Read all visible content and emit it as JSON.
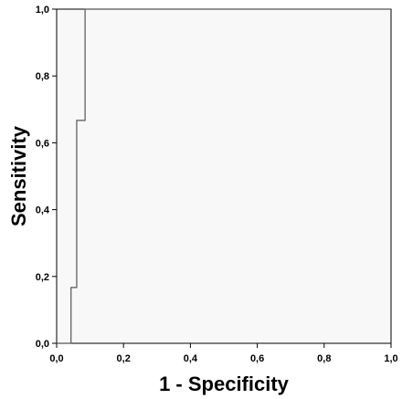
{
  "chart_data": {
    "type": "line",
    "title": "",
    "xlabel": "1 - Specificity",
    "ylabel": "Sensitivity",
    "xlim": [
      0.0,
      1.0
    ],
    "ylim": [
      0.0,
      1.0
    ],
    "x_ticks": [
      "0,0",
      "0,2",
      "0,4",
      "0,6",
      "0,8",
      "1,0"
    ],
    "y_ticks": [
      "0,0",
      "0,2",
      "0,4",
      "0,6",
      "0,8",
      "1,0"
    ],
    "grid": false,
    "legend": "none",
    "series": [
      {
        "x": [
          0.0,
          0.043,
          0.043,
          0.06,
          0.06,
          0.085,
          0.085,
          1.0
        ],
        "y": [
          0.0,
          0.0,
          0.167,
          0.167,
          0.667,
          0.667,
          1.0,
          1.0
        ],
        "color": "#555555"
      }
    ],
    "plot_background": "#f8f8f8"
  }
}
